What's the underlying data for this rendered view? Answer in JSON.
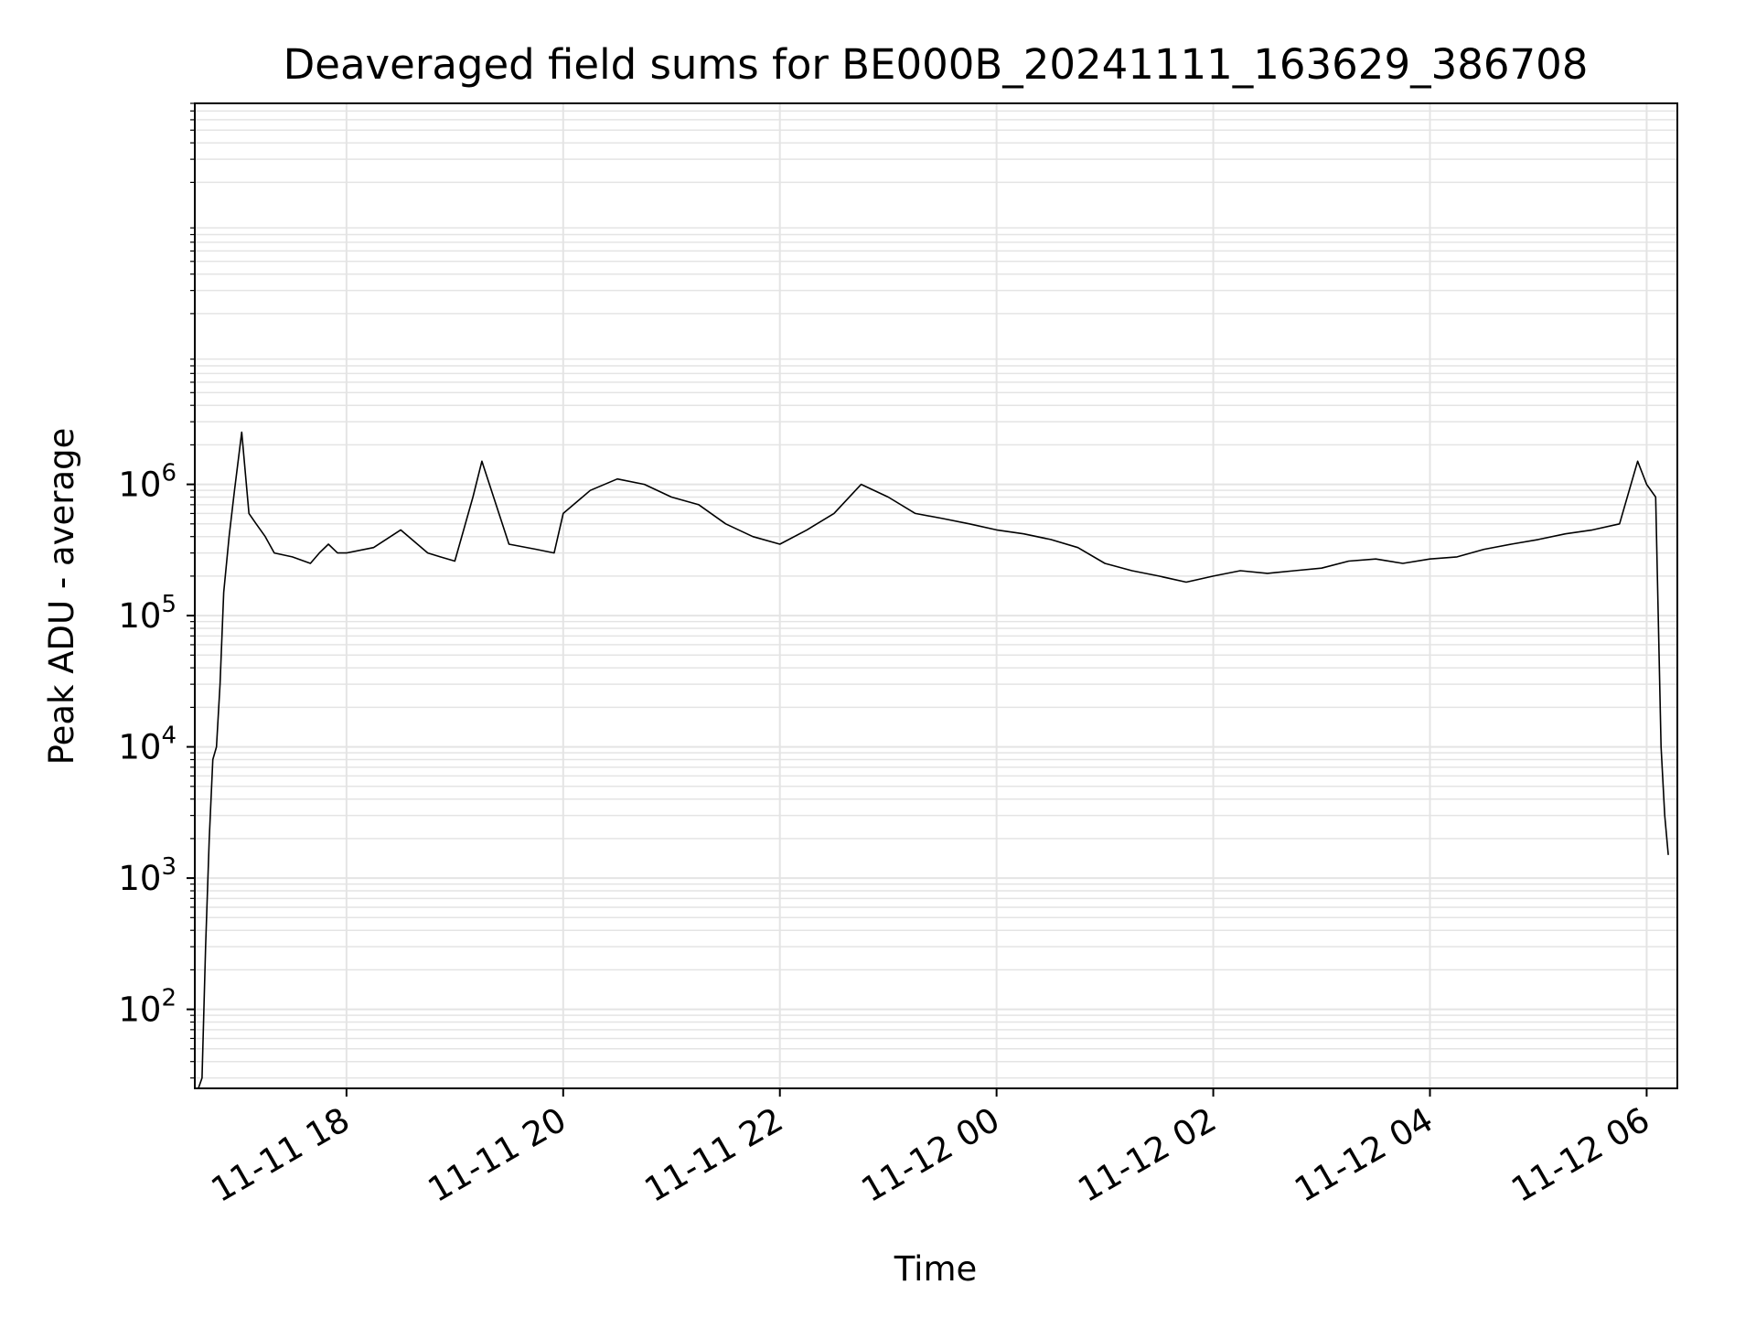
{
  "chart_data": {
    "type": "line",
    "title": "Deaveraged field sums for BE000B_20241111_163629_386708",
    "xlabel": "Time",
    "ylabel": "Peak ADU - average",
    "y_scale": "log",
    "ylim": [
      25,
      800000000
    ],
    "xlim": [
      "2024-11-11T16:36:00",
      "2024-11-12T06:17:00"
    ],
    "grid": true,
    "grid_minor": true,
    "line_color": "#000000",
    "grid_color": "#e4e4e4",
    "x_ticks": [
      {
        "t": "2024-11-11T18:00:00",
        "label": "11-11 18"
      },
      {
        "t": "2024-11-11T20:00:00",
        "label": "11-11 20"
      },
      {
        "t": "2024-11-11T22:00:00",
        "label": "11-11 22"
      },
      {
        "t": "2024-11-12T00:00:00",
        "label": "11-12 00"
      },
      {
        "t": "2024-11-12T02:00:00",
        "label": "11-12 02"
      },
      {
        "t": "2024-11-12T04:00:00",
        "label": "11-12 04"
      },
      {
        "t": "2024-11-12T06:00:00",
        "label": "11-12 06"
      }
    ],
    "y_ticks": [
      {
        "value": 100,
        "base": "10",
        "exp": "2"
      },
      {
        "value": 1000,
        "base": "10",
        "exp": "3"
      },
      {
        "value": 10000,
        "base": "10",
        "exp": "4"
      },
      {
        "value": 100000,
        "base": "10",
        "exp": "5"
      },
      {
        "value": 1000000,
        "base": "10",
        "exp": "6"
      }
    ],
    "series": [
      {
        "x": [
          "2024-11-11T16:38",
          "2024-11-11T16:40",
          "2024-11-11T16:42",
          "2024-11-11T16:44",
          "2024-11-11T16:46",
          "2024-11-11T16:48",
          "2024-11-11T16:50",
          "2024-11-11T16:52",
          "2024-11-11T16:55",
          "2024-11-11T16:58",
          "2024-11-11T17:02",
          "2024-11-11T17:06",
          "2024-11-11T17:10",
          "2024-11-11T17:15",
          "2024-11-11T17:20",
          "2024-11-11T17:30",
          "2024-11-11T17:40",
          "2024-11-11T17:45",
          "2024-11-11T17:50",
          "2024-11-11T17:55",
          "2024-11-11T18:00",
          "2024-11-11T18:15",
          "2024-11-11T18:30",
          "2024-11-11T18:45",
          "2024-11-11T18:52",
          "2024-11-11T19:00",
          "2024-11-11T19:10",
          "2024-11-11T19:15",
          "2024-11-11T19:30",
          "2024-11-11T19:45",
          "2024-11-11T19:55",
          "2024-11-11T20:00",
          "2024-11-11T20:15",
          "2024-11-11T20:30",
          "2024-11-11T20:45",
          "2024-11-11T21:00",
          "2024-11-11T21:15",
          "2024-11-11T21:30",
          "2024-11-11T21:45",
          "2024-11-11T22:00",
          "2024-11-11T22:15",
          "2024-11-11T22:30",
          "2024-11-11T22:45",
          "2024-11-11T23:00",
          "2024-11-11T23:15",
          "2024-11-11T23:30",
          "2024-11-11T23:45",
          "2024-11-12T00:00",
          "2024-11-12T00:15",
          "2024-11-12T00:30",
          "2024-11-12T00:45",
          "2024-11-12T01:00",
          "2024-11-12T01:15",
          "2024-11-12T01:30",
          "2024-11-12T01:45",
          "2024-11-12T02:00",
          "2024-11-12T02:15",
          "2024-11-12T02:30",
          "2024-11-12T02:45",
          "2024-11-12T03:00",
          "2024-11-12T03:15",
          "2024-11-12T03:30",
          "2024-11-12T03:45",
          "2024-11-12T04:00",
          "2024-11-12T04:15",
          "2024-11-12T04:30",
          "2024-11-12T04:45",
          "2024-11-12T05:00",
          "2024-11-12T05:15",
          "2024-11-12T05:30",
          "2024-11-12T05:45",
          "2024-11-12T05:55",
          "2024-11-12T06:00",
          "2024-11-12T06:05",
          "2024-11-12T06:08",
          "2024-11-12T06:10",
          "2024-11-12T06:12"
        ],
        "y": [
          25,
          30,
          300,
          2000,
          8000,
          10000,
          30000,
          150000,
          400000,
          900000,
          2500000,
          600000,
          500000,
          400000,
          300000,
          280000,
          250000,
          300000,
          350000,
          300000,
          300000,
          330000,
          450000,
          300000,
          280000,
          260000,
          800000,
          1500000,
          350000,
          320000,
          300000,
          600000,
          900000,
          1100000,
          1000000,
          800000,
          700000,
          500000,
          400000,
          350000,
          450000,
          600000,
          1000000,
          800000,
          600000,
          550000,
          500000,
          450000,
          420000,
          380000,
          330000,
          250000,
          220000,
          200000,
          180000,
          200000,
          220000,
          210000,
          220000,
          230000,
          260000,
          270000,
          250000,
          270000,
          280000,
          320000,
          350000,
          380000,
          420000,
          450000,
          500000,
          1500000,
          1000000,
          800000,
          10000,
          3000,
          1500
        ]
      }
    ]
  }
}
